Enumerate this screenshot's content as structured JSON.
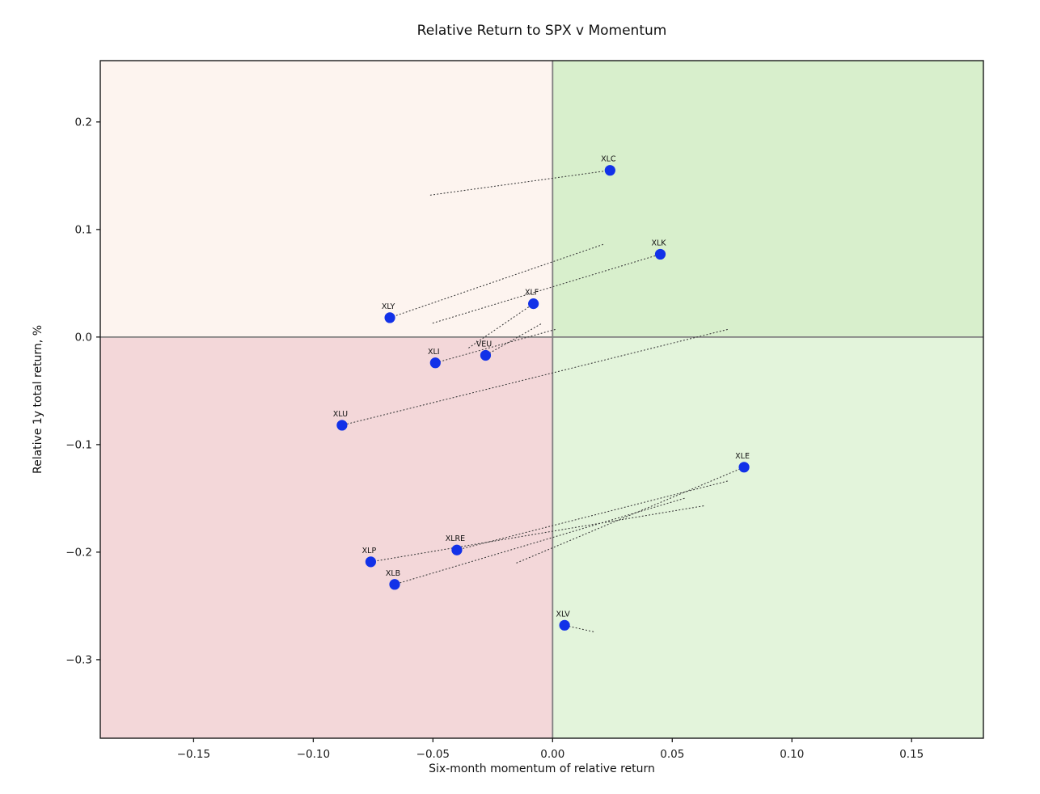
{
  "chart_data": {
    "type": "scatter",
    "title": "Relative Return to SPX v Momentum",
    "xlabel": "Six-month momentum of relative return",
    "ylabel": "Relative 1y total return, %",
    "xlim": [
      -0.189,
      0.18
    ],
    "ylim": [
      -0.373,
      0.257
    ],
    "grid": false,
    "legend": "none",
    "xticks": {
      "values": [
        -0.15,
        -0.1,
        -0.05,
        0.0,
        0.05,
        0.1,
        0.15
      ],
      "labels": [
        "−0.15",
        "−0.10",
        "−0.05",
        "0.00",
        "0.05",
        "0.10",
        "0.15"
      ]
    },
    "yticks": {
      "values": [
        0.2,
        0.1,
        0.0,
        -0.1,
        -0.2,
        -0.3
      ],
      "labels": [
        "0.2",
        "0.1",
        "0.0",
        "−0.1",
        "−0.2",
        "−0.3"
      ]
    },
    "quadrant_colors": {
      "top_left": "#fdf4ef",
      "top_right": "#d8efcc",
      "bottom_left": "#f3d7d9",
      "bottom_right": "#e3f4db"
    },
    "zero_line_color": "#7f7f7f",
    "spine_color": "#1a1a1a",
    "trail_style": "dotted",
    "trail_color": "#3a3a3a",
    "point_color": "#1231e8",
    "points": [
      {
        "label": "XLC",
        "x": 0.024,
        "y": 0.155,
        "prev_x": -0.051,
        "prev_y": 0.132
      },
      {
        "label": "XLK",
        "x": 0.045,
        "y": 0.077,
        "prev_x": -0.05,
        "prev_y": 0.013
      },
      {
        "label": "XLF",
        "x": -0.008,
        "y": 0.031,
        "prev_x": -0.035,
        "prev_y": -0.01
      },
      {
        "label": "XLY",
        "x": -0.068,
        "y": 0.018,
        "prev_x": 0.021,
        "prev_y": 0.086
      },
      {
        "label": "VEU",
        "x": -0.028,
        "y": -0.017,
        "prev_x": -0.005,
        "prev_y": 0.012
      },
      {
        "label": "XLI",
        "x": -0.049,
        "y": -0.024,
        "prev_x": 0.001,
        "prev_y": 0.007
      },
      {
        "label": "XLU",
        "x": -0.088,
        "y": -0.082,
        "prev_x": 0.073,
        "prev_y": 0.007
      },
      {
        "label": "XLE",
        "x": 0.08,
        "y": -0.121,
        "prev_x": -0.015,
        "prev_y": -0.21
      },
      {
        "label": "XLRE",
        "x": -0.04,
        "y": -0.198,
        "prev_x": 0.073,
        "prev_y": -0.134
      },
      {
        "label": "XLP",
        "x": -0.076,
        "y": -0.209,
        "prev_x": 0.063,
        "prev_y": -0.157
      },
      {
        "label": "XLB",
        "x": -0.066,
        "y": -0.23,
        "prev_x": 0.055,
        "prev_y": -0.15
      },
      {
        "label": "XLV",
        "x": 0.005,
        "y": -0.268,
        "prev_x": 0.017,
        "prev_y": -0.274
      }
    ]
  }
}
